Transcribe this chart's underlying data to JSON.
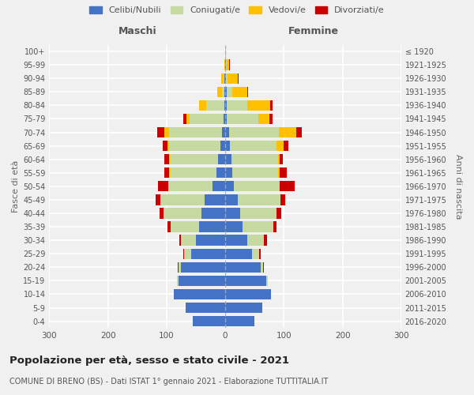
{
  "age_groups": [
    "0-4",
    "5-9",
    "10-14",
    "15-19",
    "20-24",
    "25-29",
    "30-34",
    "35-39",
    "40-44",
    "45-49",
    "50-54",
    "55-59",
    "60-64",
    "65-69",
    "70-74",
    "75-79",
    "80-84",
    "85-89",
    "90-94",
    "95-99",
    "100+"
  ],
  "birth_years": [
    "2016-2020",
    "2011-2015",
    "2006-2010",
    "2001-2005",
    "1996-2000",
    "1991-1995",
    "1986-1990",
    "1981-1985",
    "1976-1980",
    "1971-1975",
    "1966-1970",
    "1961-1965",
    "1956-1960",
    "1951-1955",
    "1946-1950",
    "1941-1945",
    "1936-1940",
    "1931-1935",
    "1926-1930",
    "1921-1925",
    "≤ 1920"
  ],
  "male_celibe": [
    55,
    68,
    88,
    80,
    75,
    58,
    50,
    45,
    40,
    35,
    22,
    15,
    12,
    8,
    6,
    3,
    2,
    1,
    1,
    0,
    0
  ],
  "male_coniugato": [
    0,
    0,
    0,
    2,
    5,
    12,
    25,
    48,
    65,
    75,
    75,
    80,
    82,
    88,
    90,
    58,
    30,
    5,
    2,
    0,
    0
  ],
  "male_vedovo": [
    0,
    0,
    0,
    0,
    0,
    0,
    0,
    0,
    0,
    0,
    0,
    1,
    2,
    3,
    8,
    5,
    12,
    7,
    4,
    1,
    0
  ],
  "male_divorziato": [
    0,
    0,
    0,
    0,
    1,
    2,
    3,
    5,
    7,
    9,
    18,
    8,
    8,
    7,
    12,
    5,
    0,
    0,
    0,
    0,
    0
  ],
  "female_celibe": [
    50,
    63,
    78,
    70,
    60,
    46,
    38,
    30,
    25,
    22,
    15,
    12,
    10,
    8,
    6,
    2,
    2,
    2,
    1,
    1,
    0
  ],
  "female_coniugato": [
    0,
    0,
    0,
    2,
    5,
    12,
    28,
    52,
    62,
    72,
    78,
    78,
    80,
    80,
    85,
    55,
    35,
    10,
    3,
    1,
    0
  ],
  "female_vedovo": [
    0,
    0,
    0,
    0,
    0,
    0,
    0,
    0,
    0,
    0,
    0,
    3,
    3,
    12,
    30,
    18,
    40,
    25,
    18,
    5,
    1
  ],
  "female_divorziato": [
    0,
    0,
    0,
    0,
    1,
    3,
    5,
    5,
    8,
    8,
    25,
    12,
    5,
    8,
    10,
    5,
    3,
    2,
    1,
    1,
    0
  ],
  "color_celibe": "#4472c4",
  "color_coniugato": "#c5d9a0",
  "color_vedovo": "#ffc000",
  "color_divorziato": "#cc0000",
  "title": "Popolazione per età, sesso e stato civile - 2021",
  "subtitle": "COMUNE DI BRENO (BS) - Dati ISTAT 1° gennaio 2021 - Elaborazione TUTTITALIA.IT",
  "xlabel_left": "Maschi",
  "xlabel_right": "Femmine",
  "ylabel_left": "Fasce di età",
  "ylabel_right": "Anni di nascita",
  "xlim": 300,
  "bg_color": "#f0f0f0",
  "grid_color": "#ffffff"
}
